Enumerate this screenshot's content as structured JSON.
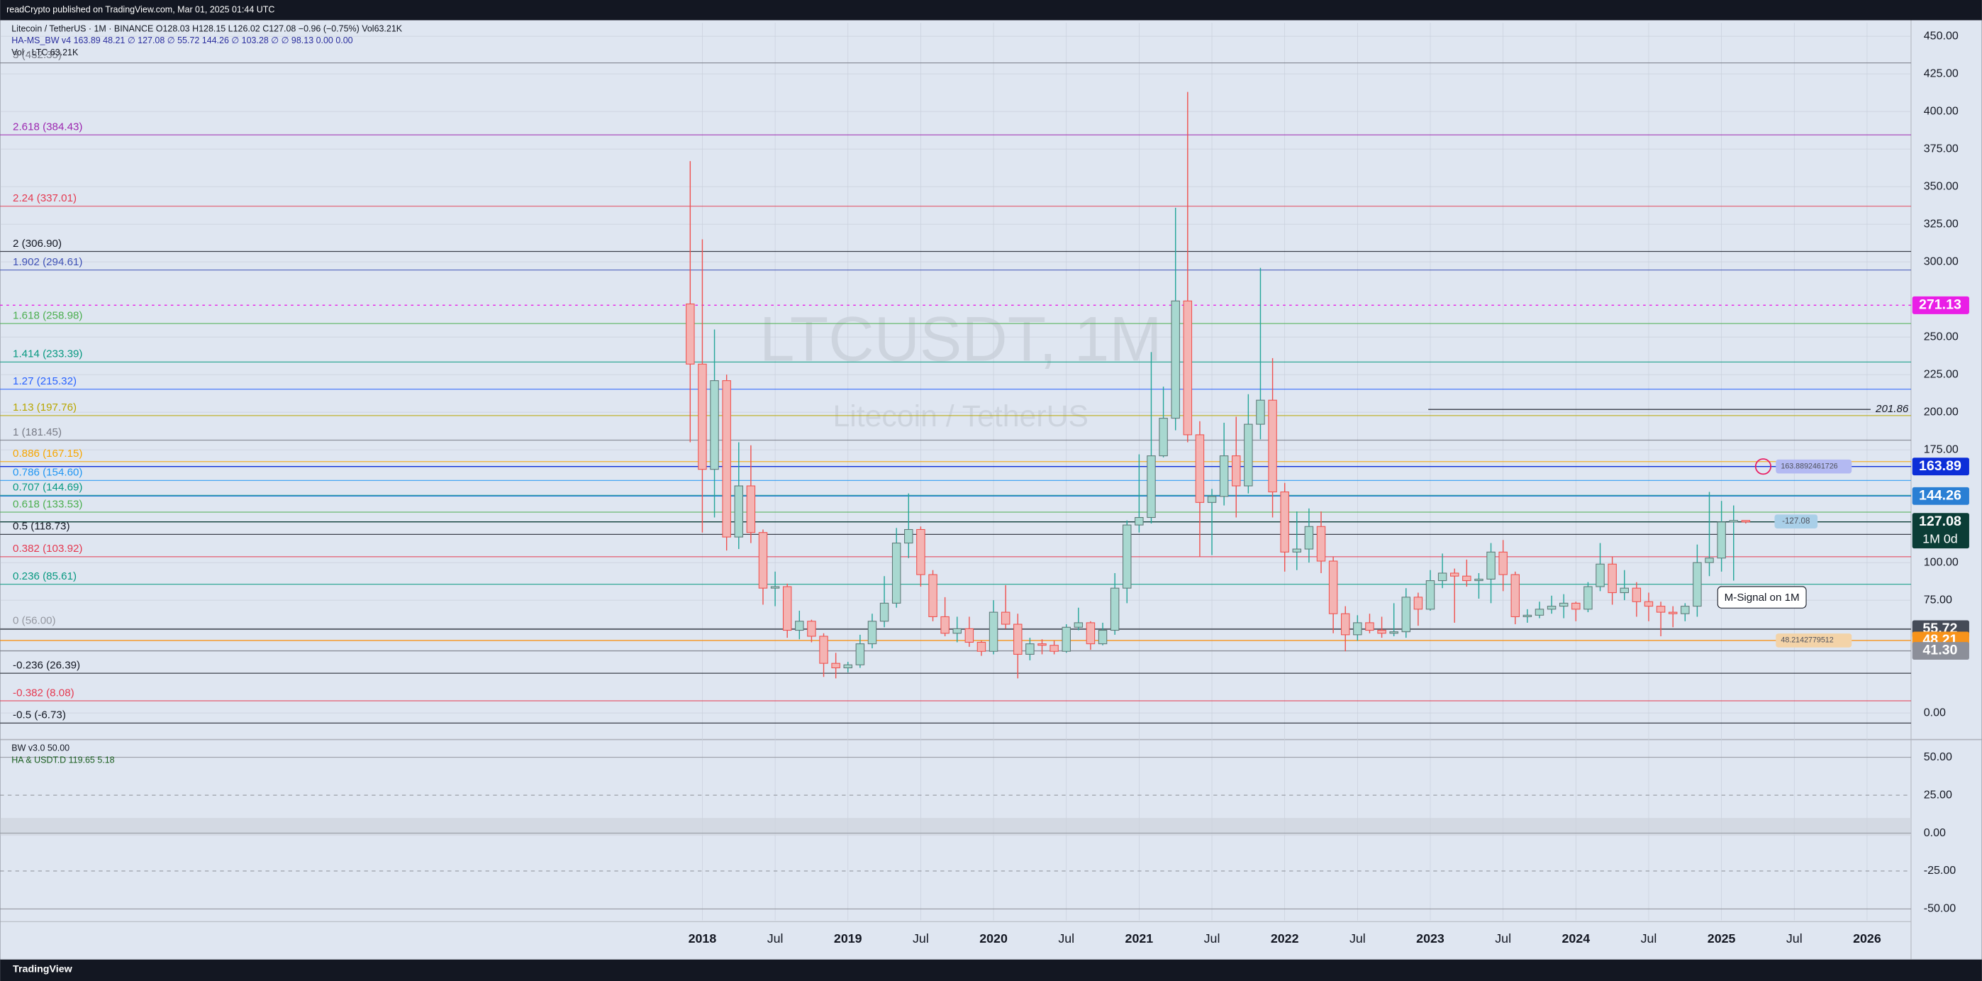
{
  "header": {
    "published": "readCrypto published on TradingView.com, Mar 01, 2025 01:44 UTC",
    "footer": "TradingView"
  },
  "chart_data": {
    "type": "candlestick",
    "title": "LTCUSDT, 1M",
    "subtitle": "Litecoin / TetherUS",
    "legend_lines": [
      "Litecoin / TetherUS · 1M · BINANCE  O128.03  H128.15  L126.02  C127.08 −0.96 (−0.75%)  Vol63.21K",
      "HA-MS_BW v4  163.89  48.21  ∅  127.08  ∅  55.72  144.26  ∅  103.28  ∅  ∅  98.13  0.00  0.00",
      "Vol · LTC  63.21K"
    ],
    "x": [
      "2017-12",
      "2018-01",
      "2018-02",
      "2018-03",
      "2018-04",
      "2018-05",
      "2018-06",
      "2018-07",
      "2018-08",
      "2018-09",
      "2018-10",
      "2018-11",
      "2018-12",
      "2019-01",
      "2019-02",
      "2019-03",
      "2019-04",
      "2019-05",
      "2019-06",
      "2019-07",
      "2019-08",
      "2019-09",
      "2019-10",
      "2019-11",
      "2019-12",
      "2020-01",
      "2020-02",
      "2020-03",
      "2020-04",
      "2020-05",
      "2020-06",
      "2020-07",
      "2020-08",
      "2020-09",
      "2020-10",
      "2020-11",
      "2020-12",
      "2021-01",
      "2021-02",
      "2021-03",
      "2021-04",
      "2021-05",
      "2021-06",
      "2021-07",
      "2021-08",
      "2021-09",
      "2021-10",
      "2021-11",
      "2021-12",
      "2022-01",
      "2022-02",
      "2022-03",
      "2022-04",
      "2022-05",
      "2022-06",
      "2022-07",
      "2022-08",
      "2022-09",
      "2022-10",
      "2022-11",
      "2022-12",
      "2023-01",
      "2023-02",
      "2023-03",
      "2023-04",
      "2023-05",
      "2023-06",
      "2023-07",
      "2023-08",
      "2023-09",
      "2023-10",
      "2023-11",
      "2023-12",
      "2024-01",
      "2024-02",
      "2024-03",
      "2024-04",
      "2024-05",
      "2024-06",
      "2024-07",
      "2024-08",
      "2024-09",
      "2024-10",
      "2024-11",
      "2024-12",
      "2025-01",
      "2025-02",
      "2025-03"
    ],
    "open": [
      272,
      232,
      162,
      221,
      117,
      151,
      120,
      83,
      84,
      55,
      61,
      51,
      33,
      30,
      32,
      46,
      61,
      73,
      113,
      122,
      92,
      64,
      53,
      56,
      47,
      41,
      67,
      59,
      39,
      46,
      45,
      41,
      57,
      60,
      46,
      55,
      83,
      125,
      130,
      171,
      196,
      274,
      185,
      140,
      144,
      171,
      151,
      192,
      208,
      147,
      107,
      109,
      124,
      101,
      66,
      52,
      60,
      55,
      53,
      54,
      77,
      69,
      88,
      93,
      91,
      88,
      89,
      107,
      92,
      64,
      65,
      69,
      71,
      73,
      69,
      84,
      99,
      80,
      83,
      74,
      71,
      67,
      66,
      71,
      100,
      103,
      127,
      128.03
    ],
    "high": [
      367,
      315,
      255,
      225,
      180,
      178,
      122,
      94,
      86,
      68,
      62,
      53,
      40,
      34,
      52,
      66,
      91,
      123,
      146,
      124,
      95,
      77,
      64,
      64,
      48,
      75,
      85,
      66,
      50,
      49,
      48,
      59,
      70,
      61,
      60,
      93,
      128,
      172,
      240,
      217,
      336,
      413,
      194,
      149,
      193,
      197,
      212,
      296,
      236,
      153,
      134,
      136,
      134,
      104,
      71,
      65,
      66,
      64,
      73,
      83,
      80,
      95,
      106,
      96,
      102,
      93,
      113,
      115,
      94,
      69,
      74,
      78,
      79,
      74,
      87,
      113,
      104,
      95,
      87,
      80,
      74,
      71,
      73,
      112,
      147,
      141,
      138,
      128.15
    ],
    "low": [
      180,
      120,
      130,
      108,
      109,
      113,
      72,
      71,
      50,
      49,
      47,
      24,
      23,
      27,
      30,
      43,
      57,
      70,
      103,
      84,
      61,
      51,
      47,
      44,
      38,
      39,
      56,
      23,
      35,
      39,
      39,
      40,
      55,
      42,
      45,
      52,
      73,
      120,
      126,
      170,
      188,
      180,
      104,
      105,
      138,
      130,
      146,
      182,
      130,
      94,
      95,
      100,
      93,
      53,
      41,
      48,
      53,
      50,
      51,
      50,
      58,
      68,
      83,
      60,
      84,
      76,
      73,
      81,
      59,
      60,
      63,
      66,
      63,
      61,
      67,
      81,
      72,
      75,
      64,
      61,
      51,
      57,
      61,
      64,
      91,
      94,
      88,
      126.02
    ],
    "close": [
      232,
      162,
      221,
      117,
      151,
      120,
      83,
      84,
      55,
      61,
      51,
      33,
      30,
      32,
      46,
      61,
      73,
      113,
      122,
      92,
      64,
      53,
      56,
      47,
      41,
      67,
      59,
      39,
      46,
      45,
      41,
      57,
      60,
      46,
      55,
      83,
      125,
      130,
      171,
      196,
      274,
      185,
      140,
      144,
      171,
      151,
      192,
      208,
      147,
      107,
      109,
      124,
      101,
      66,
      52,
      60,
      55,
      53,
      54,
      77,
      69,
      88,
      93,
      91,
      88,
      89,
      107,
      92,
      64,
      65,
      69,
      71,
      73,
      69,
      84,
      99,
      80,
      83,
      74,
      71,
      67,
      66,
      71,
      100,
      103,
      127,
      128,
      127.08
    ],
    "up_color": "#26a69a",
    "down_color": "#ef5350",
    "ylim": [
      -16,
      459
    ],
    "yticks": [
      {
        "value": 0,
        "label": "0.00"
      },
      {
        "value": 75,
        "label": "75.00"
      },
      {
        "value": 100,
        "label": "100.00"
      },
      {
        "value": 175,
        "label": "175.00"
      },
      {
        "value": 200,
        "label": "200.00"
      },
      {
        "value": 225,
        "label": "225.00"
      },
      {
        "value": 250,
        "label": "250.00"
      },
      {
        "value": 300,
        "label": "300.00"
      },
      {
        "value": 325,
        "label": "325.00"
      },
      {
        "value": 350,
        "label": "350.00"
      },
      {
        "value": 375,
        "label": "375.00"
      },
      {
        "value": 400,
        "label": "400.00"
      },
      {
        "value": 425,
        "label": "425.00"
      },
      {
        "value": 450,
        "label": "450.00"
      }
    ],
    "xticks": [
      {
        "value": "2018-01",
        "label": "2018"
      },
      {
        "value": "2018-07",
        "label": "Jul"
      },
      {
        "value": "2019-01",
        "label": "2019"
      },
      {
        "value": "2019-07",
        "label": "Jul"
      },
      {
        "value": "2020-01",
        "label": "2020"
      },
      {
        "value": "2020-07",
        "label": "Jul"
      },
      {
        "value": "2021-01",
        "label": "2021"
      },
      {
        "value": "2021-07",
        "label": "Jul"
      },
      {
        "value": "2022-01",
        "label": "2022"
      },
      {
        "value": "2022-07",
        "label": "Jul"
      },
      {
        "value": "2023-01",
        "label": "2023"
      },
      {
        "value": "2023-07",
        "label": "Jul"
      },
      {
        "value": "2024-01",
        "label": "2024"
      },
      {
        "value": "2024-07",
        "label": "Jul"
      },
      {
        "value": "2025-01",
        "label": "2025"
      },
      {
        "value": "2025-07",
        "label": "Jul"
      },
      {
        "value": "2026-01",
        "label": "2026"
      }
    ],
    "fib_levels": [
      {
        "value": 432.35,
        "label": "3 (432.35)",
        "color": "#787b86"
      },
      {
        "value": 384.43,
        "label": "2.618 (384.43)",
        "color": "#9c27b0"
      },
      {
        "value": 337.01,
        "label": "2.24 (337.01)",
        "color": "#e53950"
      },
      {
        "value": 306.9,
        "label": "2 (306.90)",
        "color": "#131722"
      },
      {
        "value": 294.61,
        "label": "1.902 (294.61)",
        "color": "#3f51b5"
      },
      {
        "value": 258.98,
        "label": "1.618 (258.98)",
        "color": "#4caf50"
      },
      {
        "value": 233.39,
        "label": "1.414 (233.39)",
        "color": "#089981"
      },
      {
        "value": 215.32,
        "label": "1.27 (215.32)",
        "color": "#2962ff"
      },
      {
        "value": 197.76,
        "label": "1.13 (197.76)",
        "color": "#b8a600"
      },
      {
        "value": 181.45,
        "label": "1 (181.45)",
        "color": "#787b86"
      },
      {
        "value": 167.15,
        "label": "0.886 (167.15)",
        "color": "#f7a600"
      },
      {
        "value": 154.6,
        "label": "0.786 (154.60)",
        "color": "#2196f3"
      },
      {
        "value": 144.69,
        "label": "0.707 (144.69)",
        "color": "#089981"
      },
      {
        "value": 133.53,
        "label": "0.618 (133.53)",
        "color": "#4caf50"
      },
      {
        "value": 118.73,
        "label": "0.5 (118.73)",
        "color": "#131722"
      },
      {
        "value": 103.92,
        "label": "0.382 (103.92)",
        "color": "#e53950"
      },
      {
        "value": 85.61,
        "label": "0.236 (85.61)",
        "color": "#089981"
      },
      {
        "value": 56.0,
        "label": "0 (56.00)",
        "color": "#9598a1"
      },
      {
        "value": 26.39,
        "label": "-0.236 (26.39)",
        "color": "#131722"
      },
      {
        "value": 8.08,
        "label": "-0.382 (8.08)",
        "color": "#e53950"
      },
      {
        "value": -6.73,
        "label": "-0.5 (-6.73)",
        "color": "#131722"
      }
    ],
    "price_tags": [
      {
        "value": 271.13,
        "label": "271.13",
        "color": "#e91ee6"
      },
      {
        "value": 163.89,
        "label": "163.89",
        "color": "#0c2ed8"
      },
      {
        "value": 144.26,
        "label": "144.26",
        "color": "#2a7fd4"
      },
      {
        "value": 127.08,
        "label": "127.08",
        "color": "#0b3d36"
      },
      {
        "value": 55.72,
        "label": "55.72",
        "color": "#454b57"
      },
      {
        "value": 48.21,
        "label": "48.21",
        "color": "#f7931a"
      },
      {
        "value": 41.3,
        "label": "41.30",
        "color": "#8c8f99"
      }
    ],
    "countdown": "1M 0d",
    "annotations": [
      {
        "value": 201.86,
        "label": "201.86"
      },
      {
        "value": 163.8892461726,
        "label": "163.8892461726"
      },
      {
        "value": 48.2142779512,
        "label": "48.2142779512"
      }
    ],
    "callouts": [
      "M-Signal on 1M",
      "-127.08"
    ],
    "lower_panel": {
      "legend_lines": [
        "BW v3.0  50.00",
        "HA & USDT.D  119.65  5.18"
      ],
      "ylim": [
        -57.5,
        59.2
      ],
      "yticks": [
        {
          "value": 50,
          "label": "50.00"
        },
        {
          "value": 25,
          "label": "25.00"
        },
        {
          "value": 0,
          "label": "0.00"
        },
        {
          "value": -25,
          "label": "-25.00"
        },
        {
          "value": -50,
          "label": "-50.00"
        }
      ]
    }
  }
}
